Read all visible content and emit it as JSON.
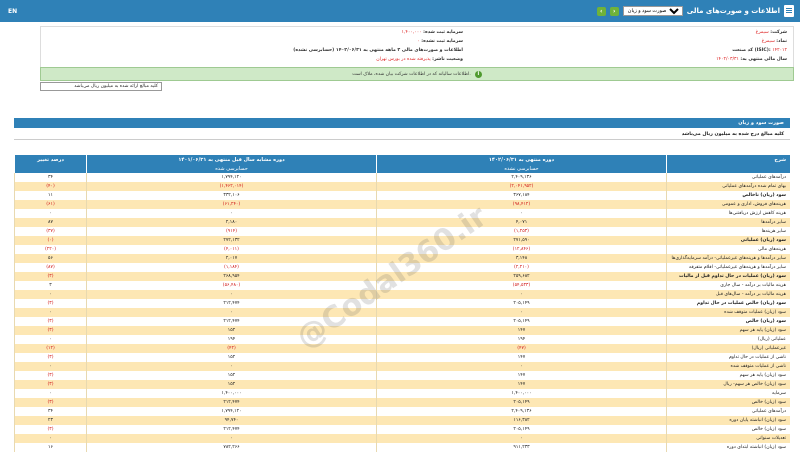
{
  "header": {
    "lang_toggle": "EN",
    "title": "اطلاعات و صورت‌های مالی",
    "statement_select": "صورت سود و زیان",
    "prev_label": "‹",
    "next_label": "›"
  },
  "company_info": {
    "company_label": "شرکت:",
    "company_value": "سیمرغ",
    "symbol_label": "نماد:",
    "symbol_value": "سیمرغ",
    "isic_label": "کد صنعت (ISIC):",
    "isic_value": "۱۴۲۰۱۲",
    "fiscal_label": "سال مالی منتهی به:",
    "fiscal_value": "۱۴۰۲/۰۳/۳۱",
    "reg_capital_label": "سرمایه ثبت شده:",
    "reg_capital_value": "۱,۴۰۰,۰۰۰",
    "unreg_capital_label": "سرمایه ثبت نشده:",
    "unreg_capital_value": "۰",
    "period_label": "اطلاعات و صورت‌های مالی ۳ ماهه منتهی به ۱۴۰۲/۰۶/۳۱ (حسابرسی نشده)",
    "status_label": "وضعیت ناشر:",
    "status_value": "پذیرفته شده در بورس تهران"
  },
  "notice_text": "اطلاعات سالیانه که در اطلاعات شرکت بیان شده، ملاک است.",
  "unit_text": "کلیه مبالغ ارائه شده به میلیون ریال می‌باشد",
  "section": {
    "title": "صورت سود و زیان",
    "note": "کلیه مبالغ درج شده به میلیون ریال می‌باشد"
  },
  "table": {
    "headers": {
      "desc": "شرح",
      "cur": "دوره منتهی به ۱۴۰۲/۰۶/۳۱",
      "prev": "دوره مشابه سال قبل منتهی به ۱۴۰۱/۰۶/۳۱",
      "pct": "درصد تغییر"
    },
    "subheaders": {
      "cur": "حسابرسی نشده",
      "prev": "حسابرسی شده"
    },
    "rows": [
      {
        "desc": "درآمدهای عملیاتی",
        "cur": "۲,۴۰۹,۱۳۶",
        "prev": "۱,۷۹۴,۱۲۰",
        "pct": "۳۴",
        "neg": false,
        "bold": false
      },
      {
        "desc": "بهای تمام شده درآمدهای عملیاتی",
        "cur": "(۲,۰۴۱,۹۵۲)",
        "prev": "(۱,۴۶۲,۰۱۴)",
        "pct": "(۴۰)",
        "neg": true,
        "bold": false
      },
      {
        "desc": "سود (زیان) ناخالص",
        "cur": "۳۶۷,۱۸۴",
        "prev": "۳۳۲,۱۰۶",
        "pct": "۱۱",
        "neg": false,
        "bold": true
      },
      {
        "desc": "هزینه‌های فروش، اداری و عمومی",
        "cur": "(۹۸,۴۱۲)",
        "prev": "(۶۱,۲۴۰)",
        "pct": "(۶۱)",
        "neg": true,
        "bold": false
      },
      {
        "desc": "هزینه کاهش ارزش دریافتنی‌ها",
        "cur": "۰",
        "prev": "۰",
        "pct": "۰",
        "neg": false,
        "bold": false
      },
      {
        "desc": "سایر درآمدها",
        "cur": "۴,۰۷۱",
        "prev": "۲,۱۸۰",
        "pct": "۸۷",
        "neg": false,
        "bold": false
      },
      {
        "desc": "سایر هزینه‌ها",
        "cur": "(۱,۲۵۳)",
        "prev": "(۹۱۴)",
        "pct": "(۳۷)",
        "neg": true,
        "bold": false
      },
      {
        "desc": "سود (زیان) عملیاتی",
        "cur": "۲۷۱,۵۹۰",
        "prev": "۲۷۲,۱۳۲",
        "pct": "(۰)",
        "neg": false,
        "bold": true
      },
      {
        "desc": "هزینه‌های مالی",
        "cur": "(۱۲,۸۴۶)",
        "prev": "(۴,۰۱۱)",
        "pct": "(۲۲۰)",
        "neg": true,
        "bold": false
      },
      {
        "desc": "سایر درآمدها و هزینه‌های غیرعملیاتی- درآمد سرمایه‌گذاری‌ها",
        "cur": "۳,۱۴۸",
        "prev": "۲,۰۱۷",
        "pct": "۵۶",
        "neg": false,
        "bold": false
      },
      {
        "desc": "سایر درآمدها و هزینه‌های غیرعملیاتی- اقلام متفرقه",
        "cur": "(۲,۲۱۰)",
        "prev": "(۱,۱۸۴)",
        "pct": "(۸۷)",
        "neg": true,
        "bold": false
      },
      {
        "desc": "سود (زیان) عملیات در حال تداوم قبل از مالیات",
        "cur": "۲۵۹,۶۸۲",
        "prev": "۲۶۸,۹۵۴",
        "pct": "(۳)",
        "neg": false,
        "bold": true
      },
      {
        "desc": "هزینه مالیات بر درآمد - سال جاری",
        "cur": "(۵۴,۵۳۳)",
        "prev": "(۵۶,۴۸۰)",
        "pct": "۳",
        "neg": true,
        "bold": false
      },
      {
        "desc": "هزینه مالیات بر درآمد - سال‌های قبل",
        "cur": "۰",
        "prev": "۰",
        "pct": "۰",
        "neg": false,
        "bold": false
      },
      {
        "desc": "سود (زیان) خالص عملیات در حال تداوم",
        "cur": "۲۰۵,۱۴۹",
        "prev": "۲۱۲,۴۷۴",
        "pct": "(۳)",
        "neg": false,
        "bold": true
      },
      {
        "desc": "سود (زیان) عملیات متوقف شده",
        "cur": "۰",
        "prev": "۰",
        "pct": "۰",
        "neg": false,
        "bold": false
      },
      {
        "desc": "سود (زیان) خالص",
        "cur": "۲۰۵,۱۴۹",
        "prev": "۲۱۲,۴۷۴",
        "pct": "(۳)",
        "neg": false,
        "bold": true
      },
      {
        "desc": "سود (زیان) پایه هر سهم",
        "cur": "۱۴۷",
        "prev": "۱۵۲",
        "pct": "(۳)",
        "neg": false,
        "bold": false
      },
      {
        "desc": "عملیاتی (ریال)",
        "cur": "۱۹۴",
        "prev": "۱۹۴",
        "pct": "۰",
        "neg": false,
        "bold": false
      },
      {
        "desc": "غیرعملیاتی (ریال)",
        "cur": "(۴۷)",
        "prev": "(۴۲)",
        "pct": "(۱۲)",
        "neg": true,
        "bold": false
      },
      {
        "desc": "ناشی از عملیات در حال تداوم",
        "cur": "۱۴۷",
        "prev": "۱۵۲",
        "pct": "(۳)",
        "neg": false,
        "bold": false
      },
      {
        "desc": "ناشی از عملیات متوقف شده",
        "cur": "۰",
        "prev": "۰",
        "pct": "۰",
        "neg": false,
        "bold": false
      },
      {
        "desc": "سود (زیان) پایه هر سهم",
        "cur": "۱۴۷",
        "prev": "۱۵۲",
        "pct": "(۳)",
        "neg": false,
        "bold": false
      },
      {
        "desc": "سود (زیان) خالص هر سهم- ریال",
        "cur": "۱۴۷",
        "prev": "۱۵۲",
        "pct": "(۳)",
        "neg": false,
        "bold": false
      },
      {
        "desc": "سرمایه",
        "cur": "۱,۴۰۰,۰۰۰",
        "prev": "۱,۴۰۰,۰۰۰",
        "pct": "۰",
        "neg": false,
        "bold": false
      },
      {
        "desc": "سود (زیان) خالص",
        "cur": "۲۰۵,۱۴۹",
        "prev": "۲۱۲,۴۷۴",
        "pct": "(۳)",
        "neg": false,
        "bold": false
      },
      {
        "desc": "درآمدهای عملیاتی",
        "cur": "۲,۴۰۹,۱۳۶",
        "prev": "۱,۷۹۴,۱۲۰",
        "pct": "۳۴",
        "neg": false,
        "bold": false
      },
      {
        "desc": "سود (زیان) انباشته پایان دوره",
        "cur": "۱۱۶,۳۸۲",
        "prev": "۹۴,۷۴۰",
        "pct": "۲۳",
        "neg": false,
        "bold": false
      },
      {
        "desc": "سود (زیان) خالص",
        "cur": "۲۰۵,۱۴۹",
        "prev": "۲۱۲,۴۷۴",
        "pct": "(۳)",
        "neg": false,
        "bold": false
      },
      {
        "desc": "تعدیلات سنواتی",
        "cur": "۰",
        "prev": "۰",
        "pct": "۰",
        "neg": false,
        "bold": false
      },
      {
        "desc": "سود (زیان) انباشته ابتدای دوره",
        "cur": "۹۱۱,۲۳۳",
        "prev": "۷۸۲,۲۶۶",
        "pct": "۱۶",
        "neg": false,
        "bold": false
      }
    ]
  },
  "watermark": "@Codal360.ir"
}
